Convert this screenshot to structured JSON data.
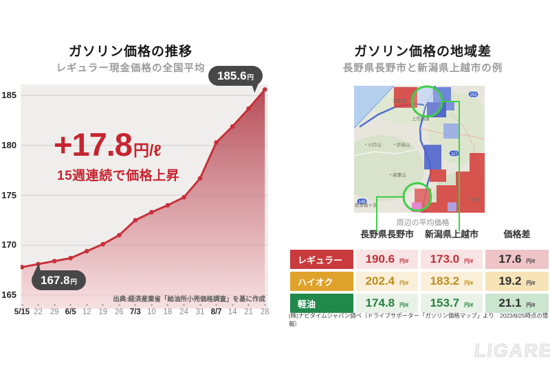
{
  "left_panel": {
    "title": "ガソリン価格の推移",
    "subtitle": "レギュラー現金価格の全国平均",
    "end_callout": {
      "value": "185.6",
      "unit": "円"
    },
    "start_callout": {
      "value": "167.8",
      "unit": "円"
    },
    "headline_delta": "+17.8",
    "headline_unit": "円/ℓ",
    "headline_caption": "15週連続で価格上昇",
    "source": "出典:経済産業省「給油所小売価格調査」を基に作成"
  },
  "right_panel": {
    "title": "ガソリン価格の地域差",
    "subtitle": "長野県長野市と新潟県上越市の例",
    "map_caption": "周辺の平均価格",
    "map_labels": [
      "北陸道",
      "上信越道",
      "火打山",
      "妙高山",
      "高妻山",
      "鹿島槍ヶ岳",
      "白馬"
    ],
    "map_shields": [
      "253",
      "117",
      "148"
    ],
    "footnote": "(株)ナビタイムジャパン調べ（ドライブサポーター「ガソリン価格マップ」より　2023/8/25時点の情報）"
  },
  "watermark": "LIGARE",
  "colors": {
    "line": "#c8303a",
    "headline": "#c6242f",
    "callout_bg": "#474747",
    "plot_bg": "#efeeec",
    "leader_green": "#3ecf46"
  },
  "chart_data": [
    {
      "type": "area",
      "title": "ガソリン価格の推移",
      "subtitle": "レギュラー現金価格の全国平均",
      "categories": [
        "5/15",
        "22",
        "29",
        "6/5",
        "12",
        "19",
        "26",
        "7/3",
        "10",
        "18",
        "24",
        "31",
        "8/7",
        "14",
        "21",
        "28"
      ],
      "values": [
        167.8,
        168.1,
        168.4,
        168.7,
        169.4,
        170.1,
        171.0,
        172.5,
        173.3,
        174.0,
        174.8,
        176.7,
        180.3,
        181.9,
        183.7,
        185.6
      ],
      "unit": "円/ℓ",
      "ylabel": "円",
      "yticks": [
        165,
        170,
        175,
        180,
        185
      ],
      "ylim": [
        163.6,
        186.2
      ],
      "bold_categories": [
        "5/15",
        "6/5",
        "7/3",
        "8/7"
      ],
      "grid": true,
      "legend": false,
      "annotations": {
        "first_point": "167.8円",
        "last_point": "185.6円",
        "delta": "+17.8円/ℓ",
        "note": "15週連続で価格上昇"
      }
    },
    {
      "type": "table",
      "title": "周辺の平均価格",
      "columns": [
        "長野県長野市",
        "新潟県上越市",
        "価格差"
      ],
      "unit": "円/ℓ",
      "rows": [
        {
          "label": "レギュラー",
          "values": [
            "190.6",
            "173.0"
          ],
          "diff": "17.6",
          "label_bg": "#c93a3c",
          "num_color": "#c22f38",
          "cell_bg": "#f8e4e4",
          "diff_bg": "#efc4c6"
        },
        {
          "label": "ハイオク",
          "values": [
            "202.4",
            "183.2"
          ],
          "diff": "19.2",
          "label_bg": "#dfa22a",
          "num_color": "#bd8c1c",
          "cell_bg": "#faf0d9",
          "diff_bg": "#f6e3b7"
        },
        {
          "label": "軽油",
          "values": [
            "174.8",
            "153.7"
          ],
          "diff": "21.1",
          "label_bg": "#20894b",
          "num_color": "#27813f",
          "cell_bg": "#e8f2e7",
          "diff_bg": "#cbe5cf"
        }
      ],
      "diff_num_color": "#2f2f2f"
    }
  ]
}
